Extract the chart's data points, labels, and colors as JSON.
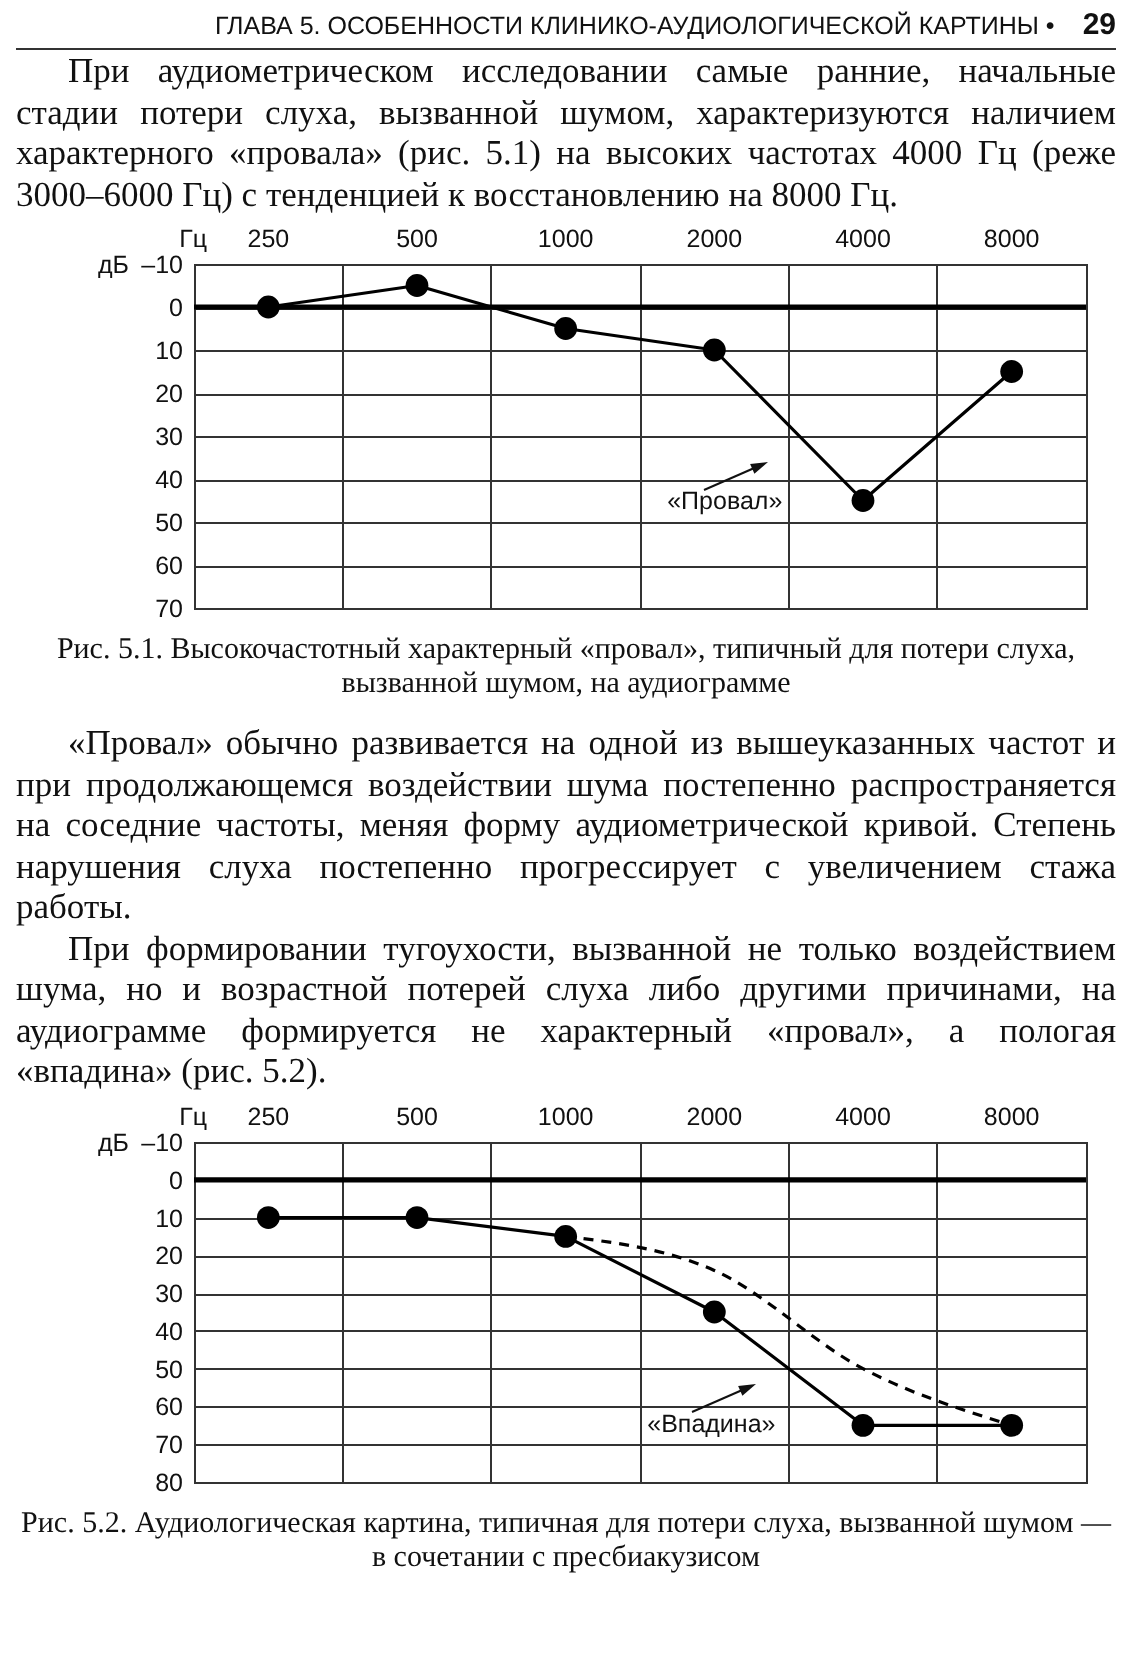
{
  "chart_data": [
    {
      "type": "other",
      "title": "ГЛАВА 5. ОСОБЕННОСТИ КЛИНИКО-АУДИОЛОГИЧЕСКОЙ КАРТИНЫ •",
      "annotations": [
        "29",
        "При аудиометрическом исследовании самые ранние, начальные стадии потери слуха, вызванной шумом, характеризуются наличием характерного «провала» (рис. 5.1) на высоких частотах 4000 Гц (реже 3000–6000 Гц) с тенденцией к восстановлению на 8000 Гц."
      ]
    },
    {
      "type": "line",
      "categories": [
        "250",
        "500",
        "1000",
        "2000",
        "4000",
        "8000"
      ],
      "xlabel": "Гц",
      "ylabel": "дБ",
      "ylim": [
        70,
        -10
      ],
      "yticks": [
        {
          "value": -10,
          "label": "–10"
        },
        0,
        10,
        20,
        30,
        40,
        50,
        60,
        70
      ],
      "grid": true,
      "marker": "circle",
      "line_style": "solid",
      "ref_lines": [
        {
          "axis": "y",
          "value": 0
        }
      ],
      "series": [
        {
          "color": "#000000",
          "values": [
            0,
            -5,
            5,
            10,
            45,
            15
          ]
        }
      ],
      "title": "Рис. 5.1. Высокочастотный характерный «провал», типичный для потери слуха, вызванной шумом, на аудиограмме",
      "annotations": [
        "«Провал»"
      ]
    },
    {
      "type": "other",
      "annotations": [
        "«Провал» обычно развивается на одной из вышеуказанных частот и при продолжающемся воздействии шума постепенно распространяется на соседние частоты, меняя форму аудиометрической кривой. Степень нарушения слуха постепенно прогрессирует с увеличением стажа работы.",
        "При формировании тугоухости, вызванной не только воздействием шума, но и возрастной потерей слуха либо другими причинами, на аудиограмме формируется не характерный «провал», а пологая «впадина» (рис. 5.2)."
      ]
    },
    {
      "type": "line",
      "categories": [
        "250",
        "500",
        "1000",
        "2000",
        "4000",
        "8000"
      ],
      "xlabel": "Гц",
      "ylabel": "дБ",
      "ylim": [
        80,
        -10
      ],
      "yticks": [
        {
          "value": -10,
          "label": "–10"
        },
        0,
        10,
        20,
        30,
        40,
        50,
        60,
        70,
        80
      ],
      "grid": true,
      "marker": "circle",
      "line_style": "solid",
      "ref_lines": [
        {
          "axis": "y",
          "value": 0
        }
      ],
      "series": [
        {
          "color": "#000000",
          "values": [
            10,
            10,
            15,
            35,
            65,
            65
          ]
        },
        {
          "color": "#000000",
          "values": [
            null,
            null,
            15,
            24,
            50,
            65
          ],
          "marker": "none",
          "line_style": "dashed"
        }
      ],
      "title": "Рис. 5.2. Аудиологическая картина, типичная для потери слуха, вызванной шумом — в сочетании с пресбиакузисом",
      "annotations": [
        "«Впадина»"
      ]
    }
  ]
}
